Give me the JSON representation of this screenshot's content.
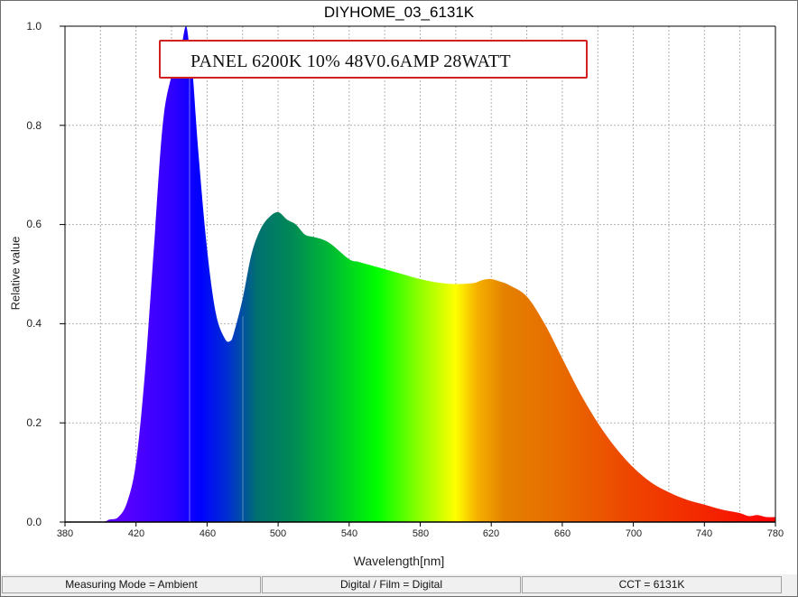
{
  "chart": {
    "title": "DIYHOME_03_6131K",
    "annotation": "PANEL 6200K 10% 48V0.6AMP  28WATT",
    "ylabel": "Relative value",
    "xlabel": "Wavelength[nm]",
    "yticks": [
      "0.0",
      "0.2",
      "0.4",
      "0.6",
      "0.8",
      "1.0"
    ],
    "xticks": [
      "380",
      "420",
      "460",
      "500",
      "540",
      "580",
      "620",
      "660",
      "700",
      "740",
      "780"
    ]
  },
  "status": {
    "measuring_mode": "Measuring Mode = Ambient",
    "digital_film": "Digital / Film = Digital",
    "cct": "CCT = 6131K"
  },
  "chart_data": {
    "type": "area",
    "title": "DIYHOME_03_6131K",
    "xlabel": "Wavelength[nm]",
    "ylabel": "Relative value",
    "xlim": [
      380,
      780
    ],
    "ylim": [
      0,
      1.0
    ],
    "grid": true,
    "annotations": [
      "PANEL 6200K 10% 48V0.6AMP  28WATT"
    ],
    "x": [
      380,
      400,
      405,
      410,
      415,
      420,
      425,
      430,
      435,
      440,
      445,
      448,
      450,
      452,
      455,
      460,
      465,
      470,
      473,
      475,
      480,
      485,
      490,
      495,
      500,
      505,
      510,
      515,
      520,
      525,
      530,
      540,
      545,
      550,
      560,
      570,
      580,
      590,
      600,
      610,
      615,
      620,
      625,
      630,
      640,
      650,
      660,
      670,
      680,
      690,
      700,
      710,
      720,
      730,
      740,
      750,
      760,
      765,
      770,
      775,
      780
    ],
    "y": [
      0,
      0,
      0.005,
      0.01,
      0.04,
      0.12,
      0.3,
      0.55,
      0.8,
      0.9,
      0.95,
      1.0,
      0.96,
      0.9,
      0.75,
      0.55,
      0.42,
      0.37,
      0.365,
      0.38,
      0.45,
      0.54,
      0.59,
      0.615,
      0.625,
      0.61,
      0.6,
      0.58,
      0.575,
      0.57,
      0.56,
      0.53,
      0.525,
      0.52,
      0.51,
      0.5,
      0.49,
      0.483,
      0.48,
      0.482,
      0.488,
      0.49,
      0.485,
      0.478,
      0.455,
      0.4,
      0.33,
      0.26,
      0.2,
      0.15,
      0.11,
      0.08,
      0.06,
      0.045,
      0.035,
      0.025,
      0.018,
      0.012,
      0.014,
      0.01,
      0.01
    ]
  }
}
